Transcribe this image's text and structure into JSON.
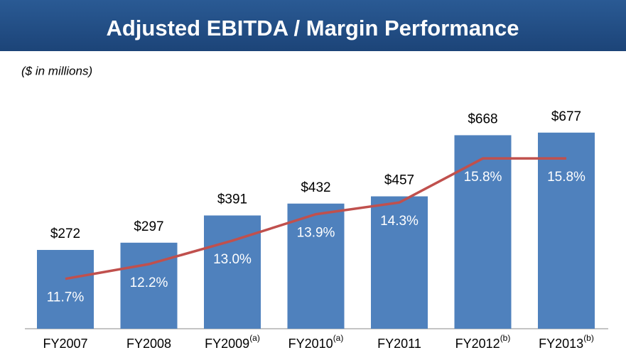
{
  "chart_data": {
    "type": "bar",
    "title": "Adjusted EBITDA / Margin Performance",
    "subtitle": "($ in millions)",
    "categories": [
      "FY2007",
      "FY2008",
      "FY2009",
      "FY2010",
      "FY2011",
      "FY2012",
      "FY2013"
    ],
    "category_notes": [
      null,
      null,
      "(a)",
      "(a)",
      null,
      "(b)",
      "(b)"
    ],
    "values": [
      272,
      297,
      391,
      432,
      457,
      668,
      677
    ],
    "value_labels": [
      "$272",
      "$297",
      "$391",
      "$432",
      "$457",
      "$668",
      "$677"
    ],
    "color": "#4f81bd",
    "ylim": [
      0,
      750
    ],
    "line": {
      "values": [
        11.7,
        12.2,
        13.0,
        13.9,
        14.3,
        15.8,
        15.8
      ],
      "value_labels": [
        "11.7%",
        "12.2%",
        "13.0%",
        "13.9%",
        "14.3%",
        "15.8%",
        "15.8%"
      ],
      "color": "#c0504d",
      "axis": "y2"
    },
    "y2lim": [
      10,
      17.4
    ]
  }
}
